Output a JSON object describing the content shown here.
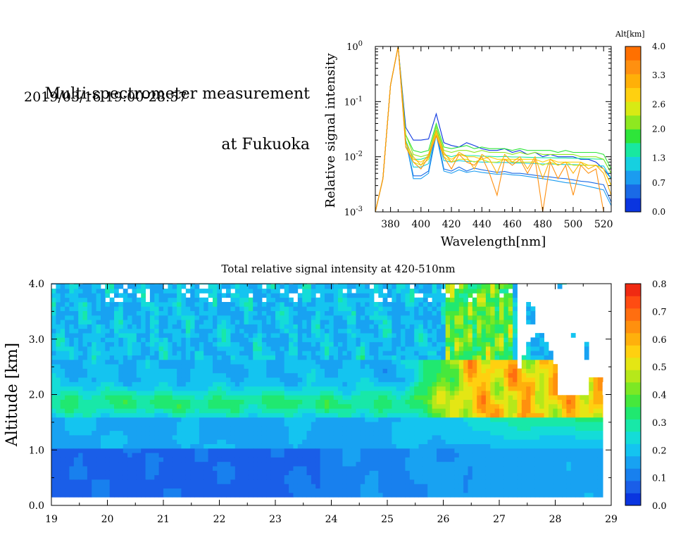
{
  "header": {
    "title_line1": "Multi-spectrometer measurement",
    "title_line2": "at Fukuoka",
    "datetime": "2019/03/16 19:00-28:57"
  },
  "chart_data": [
    {
      "type": "line",
      "title": "",
      "xlabel": "Wavelength[nm]",
      "ylabel": "Relative signal intensity",
      "xlim": [
        370,
        525
      ],
      "ylim": [
        0.001,
        1
      ],
      "yscale": "log",
      "x_ticks": [
        "380",
        "400",
        "420",
        "440",
        "460",
        "480",
        "500",
        "520"
      ],
      "y_ticks": [
        "10^0",
        "10^-1",
        "10^-2",
        "10^-3"
      ],
      "y_tick_base": "10",
      "y_tick_exps": [
        "0",
        "-1",
        "-2",
        "-3"
      ],
      "colorbar": {
        "title": "Alt[km]",
        "labels": [
          "4.0",
          "3.3",
          "2.6",
          "2.0",
          "1.3",
          "0.7",
          "0.0"
        ],
        "colors": [
          "#0a35e0",
          "#1a6ae6",
          "#1b9cf0",
          "#16d0e0",
          "#18e8a0",
          "#2ee53a",
          "#8ee820",
          "#d8ea14",
          "#ffd010",
          "#ffb008",
          "#ff9010",
          "#ff7000"
        ]
      },
      "x": [
        370,
        375,
        380,
        385,
        390,
        395,
        400,
        405,
        410,
        415,
        420,
        425,
        430,
        435,
        440,
        445,
        450,
        455,
        460,
        465,
        470,
        475,
        480,
        485,
        490,
        495,
        500,
        505,
        510,
        515,
        520,
        525
      ],
      "series": [
        {
          "alt_km": 0.0,
          "color": "#0a35e0",
          "values": [
            0.001,
            0.004,
            0.2,
            1.0,
            0.034,
            0.02,
            0.02,
            0.021,
            0.06,
            0.018,
            0.016,
            0.015,
            0.018,
            0.016,
            0.014,
            0.013,
            0.013,
            0.014,
            0.012,
            0.013,
            0.011,
            0.012,
            0.01,
            0.011,
            0.01,
            0.01,
            0.01,
            0.009,
            0.009,
            0.008,
            0.006,
            0.004
          ]
        },
        {
          "alt_km": 0.3,
          "color": "#1a6ae6",
          "values": [
            0.001,
            0.004,
            0.2,
            1.0,
            0.02,
            0.0045,
            0.0045,
            0.0055,
            0.03,
            0.006,
            0.0055,
            0.0065,
            0.0055,
            0.0062,
            0.0058,
            0.0055,
            0.0052,
            0.0054,
            0.005,
            0.005,
            0.0048,
            0.0046,
            0.0044,
            0.0043,
            0.0041,
            0.004,
            0.0038,
            0.0036,
            0.0035,
            0.0033,
            0.0031,
            0.0015
          ]
        },
        {
          "alt_km": 0.7,
          "color": "#1b9cf0",
          "values": [
            0.001,
            0.004,
            0.2,
            1.0,
            0.02,
            0.004,
            0.004,
            0.005,
            0.025,
            0.0055,
            0.005,
            0.0058,
            0.0052,
            0.0055,
            0.0052,
            0.005,
            0.0048,
            0.0049,
            0.0047,
            0.0046,
            0.0044,
            0.0042,
            0.004,
            0.0038,
            0.0036,
            0.0034,
            0.0033,
            0.0031,
            0.0029,
            0.0027,
            0.0025,
            0.0013
          ]
        },
        {
          "alt_km": 1.0,
          "color": "#16d0e0",
          "values": [
            0.001,
            0.004,
            0.2,
            1.0,
            0.02,
            0.0065,
            0.0065,
            0.0075,
            0.03,
            0.0085,
            0.008,
            0.0085,
            0.0082,
            0.0082,
            0.008,
            0.008,
            0.0078,
            0.0079,
            0.0077,
            0.0077,
            0.0076,
            0.0075,
            0.0074,
            0.0074,
            0.0073,
            0.0072,
            0.0072,
            0.0071,
            0.007,
            0.0069,
            0.0068,
            0.004
          ]
        },
        {
          "alt_km": 1.3,
          "color": "#18e8a0",
          "values": [
            0.001,
            0.004,
            0.2,
            1.0,
            0.02,
            0.009,
            0.009,
            0.01,
            0.035,
            0.011,
            0.01,
            0.011,
            0.0105,
            0.0105,
            0.0102,
            0.0102,
            0.01,
            0.0101,
            0.0099,
            0.0099,
            0.0098,
            0.0097,
            0.0096,
            0.0096,
            0.0095,
            0.0095,
            0.0094,
            0.0093,
            0.0092,
            0.0091,
            0.009,
            0.005
          ]
        },
        {
          "alt_km": 1.7,
          "color": "#2ee53a",
          "values": [
            0.001,
            0.004,
            0.2,
            1.0,
            0.025,
            0.013,
            0.012,
            0.013,
            0.04,
            0.015,
            0.014,
            0.015,
            0.016,
            0.014,
            0.015,
            0.014,
            0.014,
            0.014,
            0.013,
            0.014,
            0.013,
            0.013,
            0.013,
            0.013,
            0.012,
            0.013,
            0.012,
            0.012,
            0.012,
            0.012,
            0.011,
            0.006
          ]
        },
        {
          "alt_km": 2.0,
          "color": "#8ee820",
          "values": [
            0.001,
            0.004,
            0.2,
            1.0,
            0.025,
            0.011,
            0.01,
            0.011,
            0.035,
            0.013,
            0.012,
            0.013,
            0.013,
            0.012,
            0.013,
            0.012,
            0.012,
            0.012,
            0.011,
            0.012,
            0.011,
            0.012,
            0.011,
            0.011,
            0.011,
            0.011,
            0.011,
            0.01,
            0.01,
            0.01,
            0.009,
            0.005
          ]
        },
        {
          "alt_km": 2.6,
          "color": "#d8ea14",
          "values": [
            0.001,
            0.004,
            0.2,
            1.0,
            0.018,
            0.008,
            0.007,
            0.009,
            0.028,
            0.01,
            0.008,
            0.009,
            0.009,
            0.008,
            0.009,
            0.008,
            0.008,
            0.009,
            0.008,
            0.008,
            0.008,
            0.008,
            0.007,
            0.008,
            0.007,
            0.008,
            0.007,
            0.007,
            0.007,
            0.007,
            0.006,
            0.003
          ]
        },
        {
          "alt_km": 3.0,
          "color": "#ffd010",
          "values": [
            0.001,
            0.004,
            0.2,
            1.0,
            0.015,
            0.009,
            0.008,
            0.01,
            0.026,
            0.011,
            0.009,
            0.011,
            0.01,
            0.01,
            0.009,
            0.01,
            0.009,
            0.009,
            0.009,
            0.009,
            0.009,
            0.009,
            0.008,
            0.009,
            0.008,
            0.008,
            0.008,
            0.008,
            0.007,
            0.007,
            0.006,
            0.003
          ]
        },
        {
          "alt_km": 3.3,
          "color": "#ffb008",
          "values": [
            0.001,
            0.004,
            0.2,
            1.0,
            0.018,
            0.01,
            0.007,
            0.011,
            0.03,
            0.012,
            0.008,
            0.012,
            0.01,
            0.006,
            0.011,
            0.009,
            0.005,
            0.011,
            0.008,
            0.01,
            0.006,
            0.01,
            0.004,
            0.009,
            0.007,
            0.008,
            0.005,
            0.008,
            0.006,
            0.007,
            0.005,
            0.002
          ]
        },
        {
          "alt_km": 4.0,
          "color": "#ff9010",
          "values": [
            0.001,
            0.004,
            0.2,
            1.0,
            0.015,
            0.008,
            0.006,
            0.01,
            0.024,
            0.01,
            0.006,
            0.011,
            0.008,
            0.007,
            0.01,
            0.005,
            0.002,
            0.009,
            0.007,
            0.009,
            0.005,
            0.009,
            0.001,
            0.008,
            0.004,
            0.007,
            0.002,
            0.007,
            0.005,
            0.006,
            0.001,
            0.001
          ]
        }
      ]
    },
    {
      "type": "heatmap",
      "title": "Total relative signal intensity at 420-510nm",
      "xlabel": "",
      "ylabel": "Altitude [km]",
      "xlim": [
        19,
        29
      ],
      "ylim": [
        0,
        4.0
      ],
      "x_ticks": [
        "19",
        "20",
        "21",
        "22",
        "23",
        "24",
        "25",
        "26",
        "27",
        "28",
        "29"
      ],
      "y_ticks": [
        "0.0",
        "1.0",
        "2.0",
        "3.0",
        "4.0"
      ],
      "data_x_range": [
        19,
        28.85
      ],
      "data_y_range": [
        0.15,
        4.0
      ],
      "clim": [
        0,
        0.8
      ],
      "colorbar": {
        "labels": [
          "0.8",
          "0.7",
          "0.6",
          "0.5",
          "0.4",
          "0.3",
          "0.2",
          "0.1",
          "0.0"
        ],
        "colors": [
          "#0a35e0",
          "#1a5ee8",
          "#1880ee",
          "#18a2f2",
          "#14c4f0",
          "#14dcd8",
          "#18e8a8",
          "#20e870",
          "#46e83c",
          "#7ce824",
          "#b6e81a",
          "#e4e614",
          "#ffd010",
          "#ffb00c",
          "#ff900e",
          "#ff6e10",
          "#ff4c12",
          "#f02a12"
        ]
      },
      "description_profile": {
        "times": [
          19,
          20,
          21,
          22,
          23,
          24,
          25,
          25.5,
          26,
          26.5,
          27,
          27.5,
          28,
          28.5,
          28.85
        ],
        "altitudes": [
          0.15,
          0.5,
          0.9,
          1.2,
          1.6,
          1.9,
          2.2,
          2.6,
          3.0,
          3.4,
          3.8,
          4.0
        ]
      }
    }
  ]
}
